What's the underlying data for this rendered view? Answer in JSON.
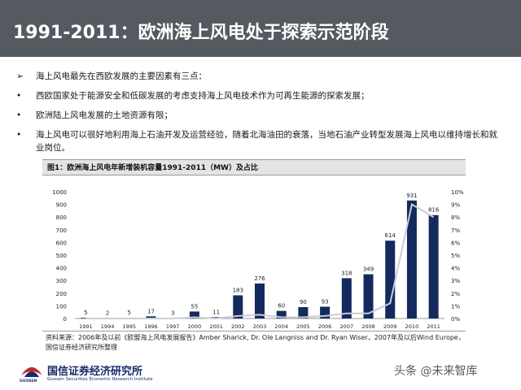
{
  "header": {
    "title": "1991-2011：欧洲海上风电处于探索示范阶段"
  },
  "bullets": [
    {
      "mark": "➢",
      "text": "海上风电最先在西欧发展的主要因素有三点："
    },
    {
      "mark": "•",
      "text": "西欧国家处于能源安全和低碳发展的考虑支持海上风电技术作为可再生能源的探索发展；"
    },
    {
      "mark": "•",
      "text": "欧洲陆上风电发展的土地资源有限；"
    },
    {
      "mark": "•",
      "text": "海上风电可以很好地利用海上石油开发及运营经验，随着北海油田的衰落，当地石油产业转型发展海上风电以维持增长和就业岗位。"
    }
  ],
  "figure": {
    "title": "图1：欧洲海上风电年新增装机容量1991-2011（MW）及占比"
  },
  "chart_data": {
    "type": "bar",
    "categories": [
      "1991",
      "1994",
      "1995",
      "1996",
      "1997",
      "2000",
      "2001",
      "2002",
      "2003",
      "2004",
      "2005",
      "2006",
      "2007",
      "2008",
      "2009",
      "2010",
      "2011"
    ],
    "series": [
      {
        "values": [
          5,
          2,
          5,
          17,
          3,
          55,
          11,
          183,
          276,
          60,
          90,
          93,
          318,
          349,
          614,
          931,
          816
        ]
      }
    ],
    "share_line": [
      0.0,
      0.0,
      0.0,
      0.0,
      0.0,
      0.1,
      0.0,
      0.2,
      0.3,
      0.1,
      0.1,
      0.2,
      0.4,
      0.4,
      1.2,
      9.0,
      8.0
    ],
    "ylim": [
      0,
      1000
    ],
    "y_ticks": [
      "0",
      "100",
      "200",
      "300",
      "400",
      "500",
      "600",
      "700",
      "800",
      "900",
      "1000"
    ],
    "y2lim": [
      0,
      10
    ],
    "y2_ticks": [
      "0%",
      "1%",
      "2%",
      "3%",
      "4%",
      "5%",
      "6%",
      "7%",
      "8%",
      "9%",
      "10%"
    ],
    "data_labels": [
      "5",
      "2",
      "5",
      "17",
      "3",
      "55",
      "11",
      "183",
      "276",
      "60",
      "90",
      "93",
      "318",
      "349",
      "614",
      "931",
      "816"
    ],
    "colors": {
      "bar": "#142a5e",
      "line": "#c8cdd8"
    },
    "grid": false
  },
  "source": {
    "text": "资料来源：2006年及以前《欧盟海上风电发展报告》Amber Sharick, Dr. Ole Langniss and Dr. Ryan Wiser，2007年及以后Wind Europe，国信证券经济研究所整理"
  },
  "footer": {
    "logo_name": "国信证券经济研究所",
    "logo_en": "Guosen Securities Economic Research Institute",
    "logo_sub": "GUOSEN",
    "watermark": "头条 @未来智库"
  }
}
